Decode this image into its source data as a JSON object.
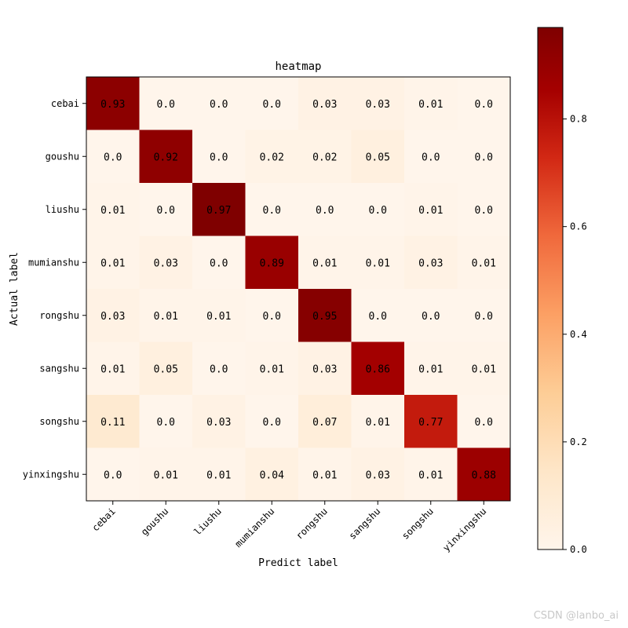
{
  "chart_data": {
    "type": "heatmap",
    "title": "heatmap",
    "xlabel": "Predict label",
    "ylabel": "Actual label",
    "labels": [
      "cebai",
      "goushu",
      "liushu",
      "mumianshu",
      "rongshu",
      "sangshu",
      "songshu",
      "yinxingshu"
    ],
    "matrix": [
      [
        0.93,
        0.0,
        0.0,
        0.0,
        0.03,
        0.03,
        0.01,
        0.0
      ],
      [
        0.0,
        0.92,
        0.0,
        0.02,
        0.02,
        0.05,
        0.0,
        0.0
      ],
      [
        0.01,
        0.0,
        0.97,
        0.0,
        0.0,
        0.0,
        0.01,
        0.0
      ],
      [
        0.01,
        0.03,
        0.0,
        0.89,
        0.01,
        0.01,
        0.03,
        0.01
      ],
      [
        0.03,
        0.01,
        0.01,
        0.0,
        0.95,
        0.0,
        0.0,
        0.0
      ],
      [
        0.01,
        0.05,
        0.0,
        0.01,
        0.03,
        0.86,
        0.01,
        0.01
      ],
      [
        0.11,
        0.0,
        0.03,
        0.0,
        0.07,
        0.01,
        0.77,
        0.0
      ],
      [
        0.0,
        0.01,
        0.01,
        0.04,
        0.01,
        0.03,
        0.01,
        0.88
      ]
    ],
    "value_labels": [
      [
        "0.93",
        "0.0",
        "0.0",
        "0.0",
        "0.03",
        "0.03",
        "0.01",
        "0.0"
      ],
      [
        "0.0",
        "0.92",
        "0.0",
        "0.02",
        "0.02",
        "0.05",
        "0.0",
        "0.0"
      ],
      [
        "0.01",
        "0.0",
        "0.97",
        "0.0",
        "0.0",
        "0.0",
        "0.01",
        "0.0"
      ],
      [
        "0.01",
        "0.03",
        "0.0",
        "0.89",
        "0.01",
        "0.01",
        "0.03",
        "0.01"
      ],
      [
        "0.03",
        "0.01",
        "0.01",
        "0.0",
        "0.95",
        "0.0",
        "0.0",
        "0.0"
      ],
      [
        "0.01",
        "0.05",
        "0.0",
        "0.01",
        "0.03",
        "0.86",
        "0.01",
        "0.01"
      ],
      [
        "0.11",
        "0.0",
        "0.03",
        "0.0",
        "0.07",
        "0.01",
        "0.77",
        "0.0"
      ],
      [
        "0.0",
        "0.01",
        "0.01",
        "0.04",
        "0.01",
        "0.03",
        "0.01",
        "0.88"
      ]
    ],
    "colormap": "OrRd",
    "colorbar": {
      "min": 0,
      "max": 0.97,
      "ticks": [
        0.0,
        0.2,
        0.4,
        0.6,
        0.8
      ],
      "tick_labels": [
        "0.0",
        "0.2",
        "0.4",
        "0.6",
        "0.8"
      ]
    }
  },
  "watermark": "CSDN @lanbo_ai"
}
